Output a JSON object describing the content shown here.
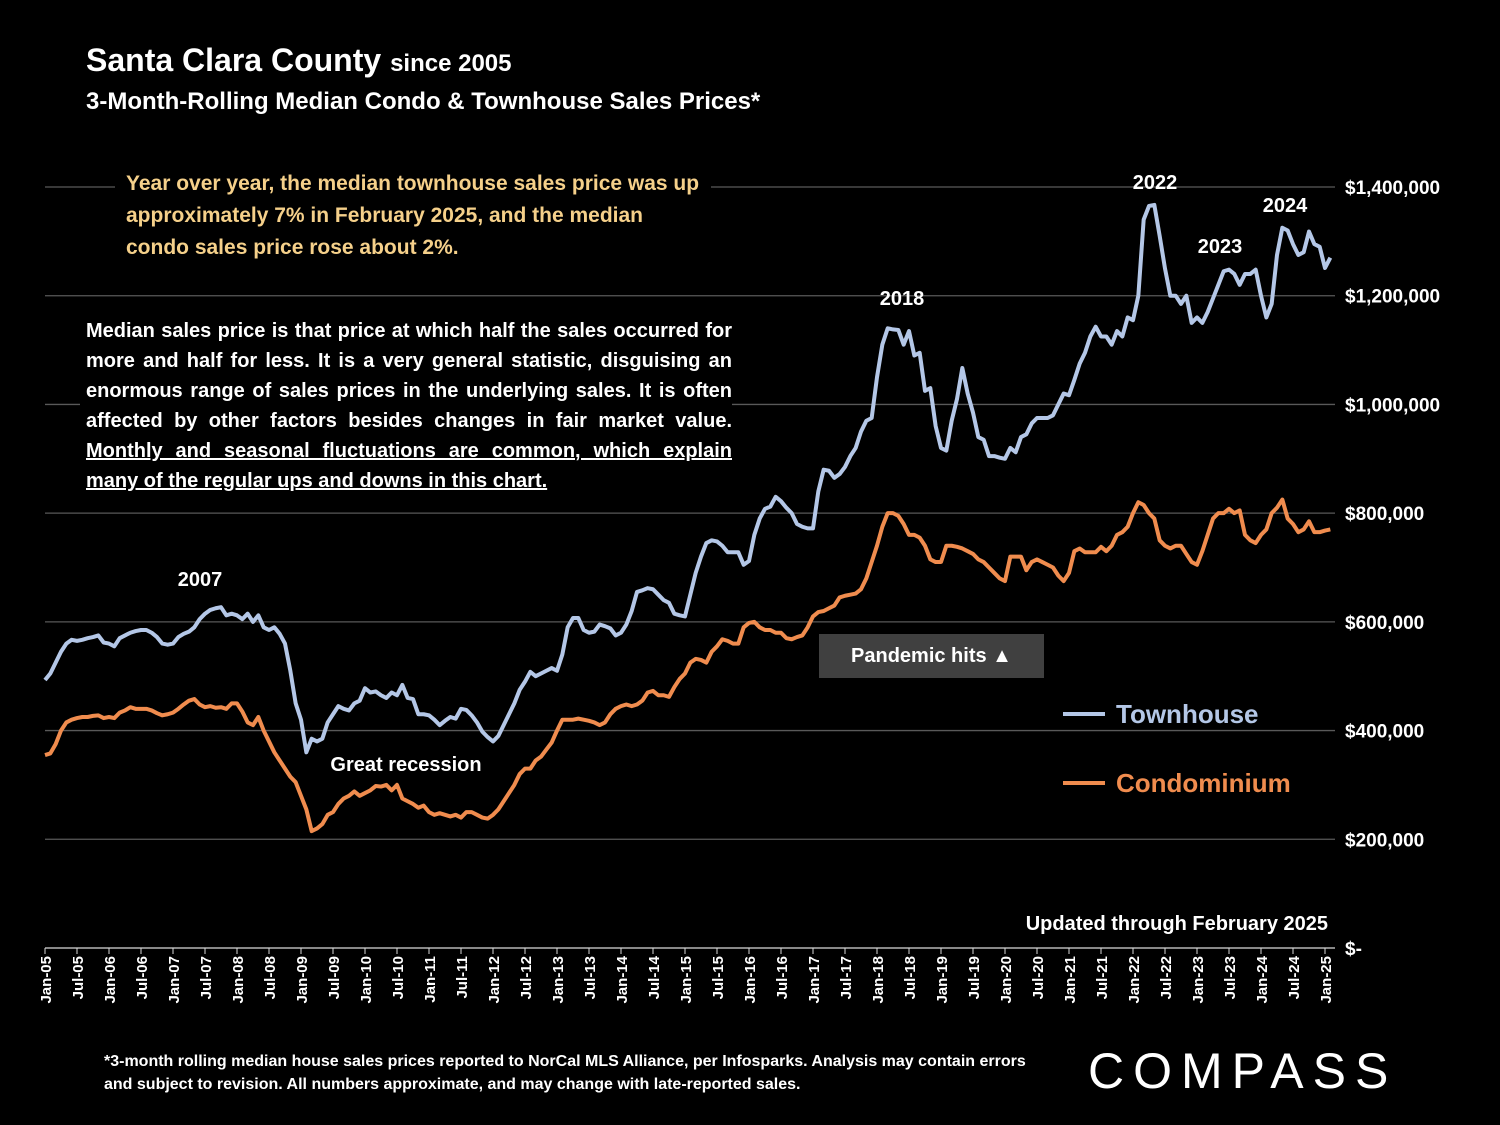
{
  "chart_data": {
    "type": "line",
    "title": "Santa Clara County",
    "title_note": "since 2005",
    "subtitle": "3-Month-Rolling Median Condo & Townhouse Sales Prices*",
    "highlight_text": "Year over year, the median townhouse sales price was up approximately 7% in February 2025, and the median condo sales price rose about 2%.",
    "body_text": [
      "Median sales price is that price at which half the sales occurred for more and half for less. It is a very general statistic, disguising an enormous range of sales prices in the underlying sales. It is often affected by other factors besides changes in fair market value. ",
      "Monthly and seasonal fluctuations are common, which explain many of the regular ups and downs in this chart."
    ],
    "annotations": [
      "2007",
      "Great recession",
      "2018",
      "2022",
      "2023",
      "2024",
      "Pandemic hits ▲"
    ],
    "updated": "Updated through February 2025",
    "footnote": "*3-month rolling median house sales prices reported to NorCal MLS Alliance, per Infosparks. Analysis may contain errors and subject to revision. All numbers approximate, and may change with late-reported sales.",
    "brand": "COMPASS",
    "grid": true,
    "ylim": [
      0,
      1400000
    ],
    "yticks": [
      {
        "value": 0,
        "label": "$-"
      },
      {
        "value": 200000,
        "label": "$200,000"
      },
      {
        "value": 400000,
        "label": "$400,000"
      },
      {
        "value": 600000,
        "label": "$600,000"
      },
      {
        "value": 800000,
        "label": "$800,000"
      },
      {
        "value": 1000000,
        "label": "$1,000,000"
      },
      {
        "value": 1200000,
        "label": "$1,200,000"
      },
      {
        "value": 1400000,
        "label": "$1,400,000"
      }
    ],
    "categories": [
      "Jan-05",
      null,
      null,
      null,
      null,
      null,
      "Jul-05",
      null,
      null,
      null,
      null,
      null,
      "Jan-06",
      null,
      null,
      null,
      null,
      null,
      "Jul-06",
      null,
      null,
      null,
      null,
      null,
      "Jan-07",
      null,
      null,
      null,
      null,
      null,
      "Jul-07",
      null,
      null,
      null,
      null,
      null,
      "Jan-08",
      null,
      null,
      null,
      null,
      null,
      "Jul-08",
      null,
      null,
      null,
      null,
      null,
      "Jan-09",
      null,
      null,
      null,
      null,
      null,
      "Jul-09",
      null,
      null,
      null,
      null,
      null,
      "Jan-10",
      null,
      null,
      null,
      null,
      null,
      "Jul-10",
      null,
      null,
      null,
      null,
      null,
      "Jan-11",
      null,
      null,
      null,
      null,
      null,
      "Jul-11",
      null,
      null,
      null,
      null,
      null,
      "Jan-12",
      null,
      null,
      null,
      null,
      null,
      "Jul-12",
      null,
      null,
      null,
      null,
      null,
      "Jan-13",
      null,
      null,
      null,
      null,
      null,
      "Jul-13",
      null,
      null,
      null,
      null,
      null,
      "Jan-14",
      null,
      null,
      null,
      null,
      null,
      "Jul-14",
      null,
      null,
      null,
      null,
      null,
      "Jan-15",
      null,
      null,
      null,
      null,
      null,
      "Jul-15",
      null,
      null,
      null,
      null,
      null,
      "Jan-16",
      null,
      null,
      null,
      null,
      null,
      "Jul-16",
      null,
      null,
      null,
      null,
      null,
      "Jan-17",
      null,
      null,
      null,
      null,
      null,
      "Jul-17",
      null,
      null,
      null,
      null,
      null,
      "Jan-18",
      null,
      null,
      null,
      null,
      null,
      "Jul-18",
      null,
      null,
      null,
      null,
      null,
      "Jan-19",
      null,
      null,
      null,
      null,
      null,
      "Jul-19",
      null,
      null,
      null,
      null,
      null,
      "Jan-20",
      null,
      null,
      null,
      null,
      null,
      "Jul-20",
      null,
      null,
      null,
      null,
      null,
      "Jan-21",
      null,
      null,
      null,
      null,
      null,
      "Jul-21",
      null,
      null,
      null,
      null,
      null,
      "Jan-22",
      null,
      null,
      null,
      null,
      null,
      "Jul-22",
      null,
      null,
      null,
      null,
      null,
      "Jan-23",
      null,
      null,
      null,
      null,
      null,
      "Jul-23",
      null,
      null,
      null,
      null,
      null,
      "Jan-24",
      null,
      null,
      null,
      null,
      null,
      "Jul-24",
      null,
      null,
      null,
      null,
      null,
      "Jan-25",
      null
    ],
    "series": [
      {
        "name": "Townhouse",
        "color": "#b4c7e7",
        "values": [
          493000,
          505000,
          525000,
          545000,
          560000,
          567000,
          565000,
          567000,
          570000,
          572000,
          575000,
          562000,
          560000,
          555000,
          570000,
          575000,
          580000,
          583000,
          585000,
          585000,
          580000,
          572000,
          560000,
          558000,
          560000,
          572000,
          578000,
          582000,
          590000,
          605000,
          615000,
          622000,
          625000,
          627000,
          612000,
          615000,
          612000,
          605000,
          615000,
          600000,
          612000,
          590000,
          585000,
          590000,
          578000,
          560000,
          510000,
          450000,
          420000,
          360000,
          385000,
          380000,
          385000,
          415000,
          430000,
          445000,
          440000,
          437000,
          450000,
          455000,
          478000,
          470000,
          472000,
          465000,
          460000,
          470000,
          465000,
          484000,
          460000,
          458000,
          430000,
          430000,
          428000,
          420000,
          410000,
          418000,
          425000,
          422000,
          440000,
          438000,
          428000,
          415000,
          398000,
          388000,
          380000,
          390000,
          410000,
          430000,
          450000,
          475000,
          490000,
          508000,
          500000,
          505000,
          510000,
          515000,
          510000,
          540000,
          590000,
          607000,
          607000,
          585000,
          580000,
          582000,
          595000,
          592000,
          588000,
          575000,
          580000,
          595000,
          620000,
          655000,
          658000,
          662000,
          660000,
          650000,
          640000,
          635000,
          615000,
          612000,
          610000,
          650000,
          690000,
          720000,
          745000,
          750000,
          748000,
          740000,
          728000,
          728000,
          728000,
          705000,
          712000,
          760000,
          790000,
          808000,
          812000,
          830000,
          822000,
          810000,
          800000,
          780000,
          775000,
          772000,
          772000,
          840000,
          880000,
          878000,
          865000,
          872000,
          885000,
          905000,
          920000,
          950000,
          970000,
          975000,
          1050000,
          1110000,
          1140000,
          1138000,
          1137000,
          1110000,
          1135000,
          1090000,
          1095000,
          1025000,
          1030000,
          960000,
          920000,
          915000,
          970000,
          1010000,
          1067000,
          1020000,
          985000,
          940000,
          935000,
          905000,
          905000,
          902000,
          900000,
          920000,
          912000,
          940000,
          945000,
          965000,
          975000,
          975000,
          975000,
          980000,
          1000000,
          1020000,
          1017000,
          1045000,
          1075000,
          1095000,
          1125000,
          1143000,
          1125000,
          1125000,
          1110000,
          1135000,
          1125000,
          1160000,
          1155000,
          1200000,
          1340000,
          1365000,
          1367000,
          1310000,
          1250000,
          1200000,
          1200000,
          1185000,
          1200000,
          1150000,
          1160000,
          1150000,
          1170000,
          1195000,
          1220000,
          1245000,
          1248000,
          1240000,
          1220000,
          1240000,
          1240000,
          1248000,
          1200000,
          1160000,
          1185000,
          1275000,
          1325000,
          1320000,
          1295000,
          1275000,
          1280000,
          1318000,
          1295000,
          1290000,
          1251000,
          1270000
        ]
      },
      {
        "name": "Condominium",
        "color": "#f08c4e",
        "values": [
          355000,
          358000,
          375000,
          400000,
          415000,
          420000,
          423000,
          425000,
          425000,
          427000,
          428000,
          423000,
          425000,
          423000,
          433000,
          437000,
          443000,
          440000,
          440000,
          440000,
          437000,
          432000,
          428000,
          430000,
          433000,
          440000,
          448000,
          455000,
          458000,
          448000,
          443000,
          445000,
          442000,
          443000,
          440000,
          450000,
          450000,
          435000,
          415000,
          410000,
          425000,
          400000,
          380000,
          360000,
          345000,
          330000,
          315000,
          305000,
          280000,
          255000,
          215000,
          220000,
          228000,
          245000,
          250000,
          265000,
          275000,
          280000,
          288000,
          280000,
          285000,
          290000,
          298000,
          297000,
          300000,
          290000,
          300000,
          275000,
          270000,
          265000,
          258000,
          262000,
          250000,
          245000,
          248000,
          245000,
          242000,
          245000,
          240000,
          250000,
          250000,
          245000,
          240000,
          238000,
          245000,
          255000,
          270000,
          285000,
          300000,
          320000,
          330000,
          330000,
          345000,
          352000,
          365000,
          378000,
          400000,
          420000,
          420000,
          420000,
          422000,
          420000,
          418000,
          415000,
          410000,
          415000,
          430000,
          440000,
          445000,
          448000,
          445000,
          448000,
          455000,
          470000,
          473000,
          465000,
          465000,
          462000,
          480000,
          495000,
          505000,
          525000,
          532000,
          530000,
          525000,
          545000,
          555000,
          568000,
          565000,
          560000,
          560000,
          590000,
          598000,
          600000,
          590000,
          585000,
          585000,
          580000,
          580000,
          570000,
          568000,
          572000,
          575000,
          590000,
          610000,
          618000,
          620000,
          625000,
          630000,
          645000,
          648000,
          650000,
          652000,
          660000,
          680000,
          710000,
          740000,
          775000,
          800000,
          800000,
          795000,
          780000,
          760000,
          760000,
          755000,
          740000,
          715000,
          710000,
          710000,
          740000,
          740000,
          738000,
          735000,
          730000,
          725000,
          715000,
          710000,
          700000,
          690000,
          680000,
          675000,
          720000,
          720000,
          720000,
          695000,
          710000,
          715000,
          710000,
          705000,
          700000,
          685000,
          675000,
          690000,
          730000,
          735000,
          728000,
          728000,
          728000,
          738000,
          730000,
          740000,
          760000,
          765000,
          775000,
          800000,
          820000,
          815000,
          800000,
          790000,
          750000,
          740000,
          735000,
          740000,
          740000,
          725000,
          710000,
          705000,
          730000,
          760000,
          790000,
          800000,
          800000,
          808000,
          800000,
          805000,
          760000,
          750000,
          745000,
          760000,
          770000,
          800000,
          810000,
          825000,
          790000,
          780000,
          765000,
          770000,
          785000,
          765000,
          765000,
          768000,
          770000
        ]
      }
    ]
  }
}
